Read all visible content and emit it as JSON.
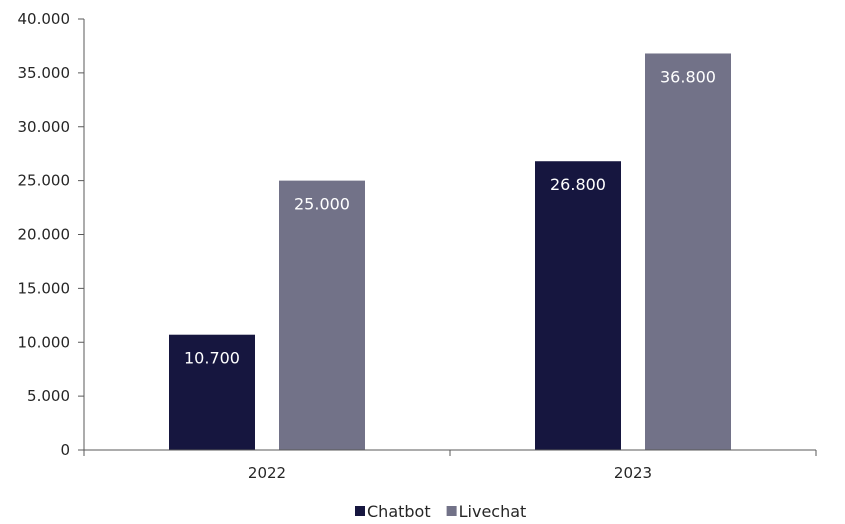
{
  "chart_data": {
    "type": "bar",
    "categories": [
      "2022",
      "2023"
    ],
    "series": [
      {
        "name": "Chatbot",
        "values": [
          10700,
          26800
        ],
        "labels": [
          "10.700",
          "26.800"
        ],
        "color": "#16163f"
      },
      {
        "name": "Livechat",
        "values": [
          25000,
          36800
        ],
        "labels": [
          "25.000",
          "36.800"
        ],
        "color": "#727288"
      }
    ],
    "y_ticks": [
      0,
      5000,
      10000,
      15000,
      20000,
      25000,
      30000,
      35000,
      40000
    ],
    "y_tick_labels": [
      "0",
      "5.000",
      "10.000",
      "15.000",
      "20.000",
      "25.000",
      "30.000",
      "35.000",
      "40.000"
    ],
    "ylim": [
      0,
      40000
    ],
    "grid": false,
    "legend": "bottom"
  }
}
